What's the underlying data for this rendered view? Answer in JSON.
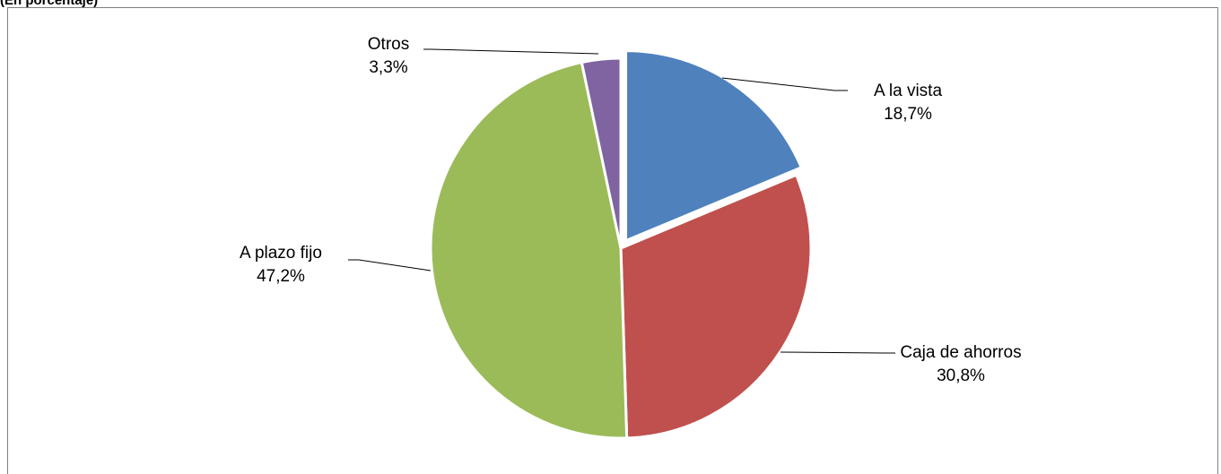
{
  "header": {
    "title": "(En porcentaje)"
  },
  "chart_data": {
    "type": "pie",
    "title": "",
    "slices": [
      {
        "label": "A la vista",
        "value": 18.7,
        "value_text": "18,7%",
        "color": "#4f81bd"
      },
      {
        "label": "Caja de ahorros",
        "value": 30.8,
        "value_text": "30,8%",
        "color": "#c0504d"
      },
      {
        "label": "A plazo fijo",
        "value": 47.2,
        "value_text": "47,2%",
        "color": "#9bbb59"
      },
      {
        "label": "Otros",
        "value": 3.3,
        "value_text": "3,3%",
        "color": "#8064a2"
      }
    ],
    "start": "12 o'clock",
    "direction": "clockwise",
    "exploded_slice": "A la vista",
    "legend": "none",
    "data_labels": "category and value, outside with leader lines"
  }
}
